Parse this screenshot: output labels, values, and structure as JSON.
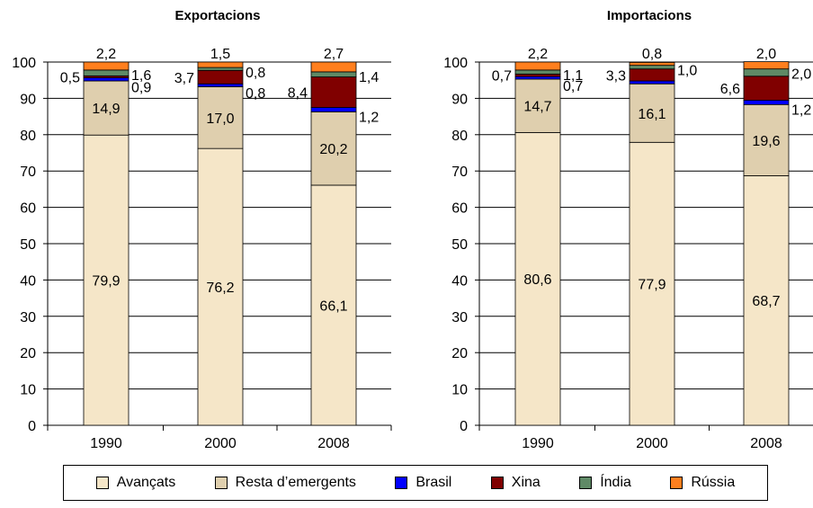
{
  "chart_data": [
    {
      "type": "bar",
      "stacked": true,
      "title": "Exportacions",
      "categories": [
        "1990",
        "2000",
        "2008"
      ],
      "ylim": [
        0,
        100
      ],
      "yticks": [
        "0",
        "10",
        "20",
        "30",
        "40",
        "50",
        "60",
        "70",
        "80",
        "90",
        "100"
      ],
      "grid": true,
      "series": [
        {
          "name": "Avançats",
          "values": [
            79.9,
            76.2,
            66.1
          ],
          "labels": [
            "79,9",
            "76,2",
            "66,1"
          ]
        },
        {
          "name": "Resta d’emergents",
          "values": [
            14.9,
            17.0,
            20.2
          ],
          "labels": [
            "14,9",
            "17,0",
            "20,2"
          ]
        },
        {
          "name": "Brasil",
          "values": [
            0.9,
            0.8,
            1.2
          ],
          "labels": [
            "0,9",
            "0,8",
            "1,2"
          ]
        },
        {
          "name": "Xina",
          "values": [
            0.5,
            3.7,
            8.4
          ],
          "labels": [
            "0,5",
            "3,7",
            "8,4"
          ]
        },
        {
          "name": "Índia",
          "values": [
            1.6,
            0.8,
            1.4
          ],
          "labels": [
            "1,6",
            "0,8",
            "1,4"
          ]
        },
        {
          "name": "Rússia",
          "values": [
            2.2,
            1.5,
            2.7
          ],
          "labels": [
            "2,2",
            "1,5",
            "2,7"
          ]
        }
      ]
    },
    {
      "type": "bar",
      "stacked": true,
      "title": "Importacions",
      "categories": [
        "1990",
        "2000",
        "2008"
      ],
      "ylim": [
        0,
        100
      ],
      "yticks": [
        "0",
        "10",
        "20",
        "30",
        "40",
        "50",
        "60",
        "70",
        "80",
        "90",
        "100"
      ],
      "grid": true,
      "series": [
        {
          "name": "Avançats",
          "values": [
            80.6,
            77.9,
            68.7
          ],
          "labels": [
            "80,6",
            "77,9",
            "68,7"
          ]
        },
        {
          "name": "Resta d’emergents",
          "values": [
            14.7,
            16.1,
            19.6
          ],
          "labels": [
            "14,7",
            "16,1",
            "19,6"
          ]
        },
        {
          "name": "Brasil",
          "values": [
            0.7,
            0.8,
            1.2
          ],
          "labels": [
            "0,7",
            "",
            "1,2"
          ]
        },
        {
          "name": "Xina",
          "values": [
            0.7,
            3.3,
            6.6
          ],
          "labels": [
            "0,7",
            "3,3",
            "6,6"
          ]
        },
        {
          "name": "Índia",
          "values": [
            1.1,
            1.0,
            2.0
          ],
          "labels": [
            "1,1",
            "1,0",
            "2,0"
          ]
        },
        {
          "name": "Rússia",
          "values": [
            2.2,
            0.8,
            2.0
          ],
          "labels": [
            "2,2",
            "0,8",
            "2,0"
          ]
        }
      ]
    }
  ],
  "legend": [
    {
      "name": "Avançats",
      "color": "#f5e6c8"
    },
    {
      "name": "Resta d’emergents",
      "color": "#dfcfae"
    },
    {
      "name": "Brasil",
      "color": "#0000ff"
    },
    {
      "name": "Xina",
      "color": "#800000"
    },
    {
      "name": "Índia",
      "color": "#5f8a66"
    },
    {
      "name": "Rússia",
      "color": "#ff7f1e"
    }
  ]
}
